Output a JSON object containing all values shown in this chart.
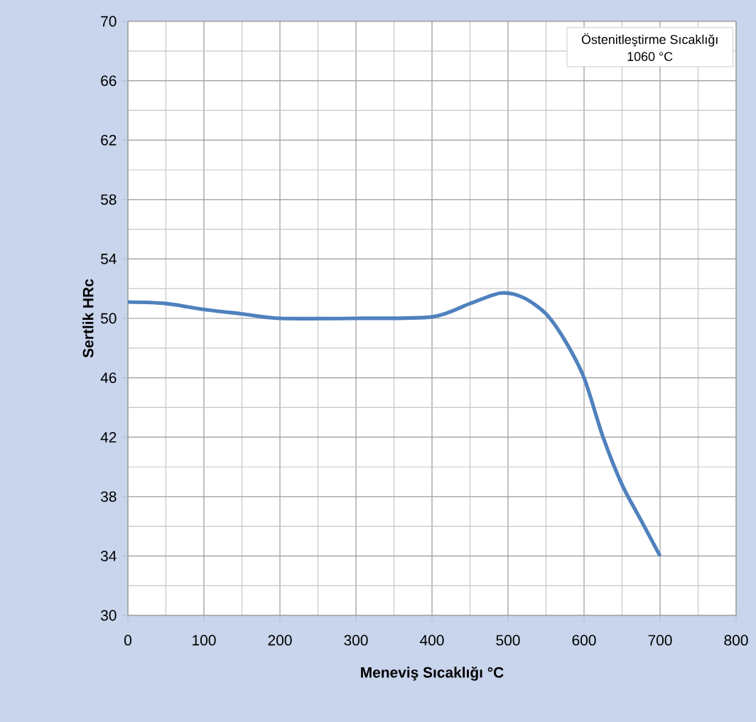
{
  "chart_data": {
    "type": "line",
    "xlabel": "Meneviş Sıcaklığı  °C",
    "ylabel": "Sertlik HRc",
    "annotations": [
      "Östenitleştirme Sıcaklığı",
      "1060 °C"
    ],
    "x": [
      0,
      50,
      100,
      150,
      200,
      300,
      400,
      450,
      490,
      520,
      550,
      575,
      600,
      625,
      650,
      675,
      700
    ],
    "series": [
      {
        "color": "#4f81bd",
        "values": [
          51.1,
          51,
          50.6,
          50.3,
          50,
          50,
          50.1,
          51,
          51.7,
          51.4,
          50.3,
          48.5,
          46,
          42,
          38.8,
          36.4,
          34
        ]
      }
    ],
    "xlim": [
      0,
      800
    ],
    "xticks": [
      0,
      100,
      200,
      300,
      400,
      500,
      600,
      700,
      800
    ],
    "ylim": [
      30,
      70
    ],
    "yticks": [
      30,
      34,
      38,
      42,
      46,
      50,
      54,
      58,
      62,
      66,
      70
    ],
    "grid": true,
    "marker": "none",
    "line_style": "solid"
  }
}
